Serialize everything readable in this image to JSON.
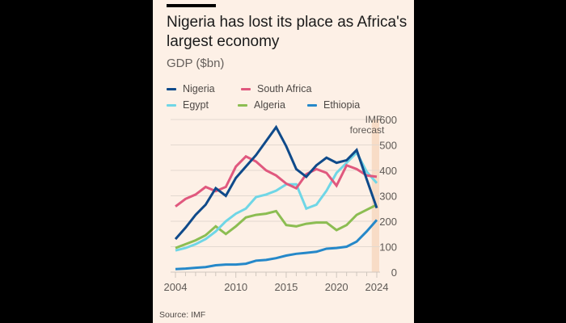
{
  "title": "Nigeria has lost its place as Africa's largest economy",
  "subtitle": "GDP ($bn)",
  "source": "Source: IMF",
  "chart_data": {
    "type": "line",
    "title": "Nigeria has lost its place as Africa's largest economy",
    "subtitle": "GDP ($bn)",
    "xlabel": "",
    "ylabel": "GDP ($bn)",
    "x": [
      2004,
      2005,
      2006,
      2007,
      2008,
      2009,
      2010,
      2011,
      2012,
      2013,
      2014,
      2015,
      2016,
      2017,
      2018,
      2019,
      2020,
      2021,
      2022,
      2023,
      2024
    ],
    "xlim": [
      2004,
      2024
    ],
    "ylim": [
      0,
      600
    ],
    "x_ticks": [
      2004,
      2010,
      2015,
      2020,
      2024
    ],
    "y_ticks": [
      0,
      100,
      200,
      300,
      400,
      500,
      600
    ],
    "y_axis_side": "right",
    "grid": true,
    "legend_position": "top-left",
    "annotation": {
      "label": "IMF forecast",
      "from": 2023.5,
      "to": 2024,
      "color": "#f8dcc6"
    },
    "series": [
      {
        "name": "Nigeria",
        "color": "#0f4a8a",
        "values": [
          130,
          175,
          225,
          265,
          330,
          300,
          370,
          415,
          460,
          515,
          570,
          495,
          405,
          375,
          420,
          450,
          430,
          440,
          480,
          365,
          252
        ]
      },
      {
        "name": "South Africa",
        "color": "#e0587e",
        "values": [
          258,
          288,
          305,
          335,
          318,
          335,
          415,
          455,
          435,
          400,
          380,
          348,
          330,
          385,
          405,
          390,
          340,
          420,
          405,
          380,
          375
        ]
      },
      {
        "name": "Egypt",
        "color": "#6fd6e6",
        "values": [
          85,
          95,
          110,
          130,
          160,
          200,
          230,
          250,
          295,
          305,
          320,
          345,
          345,
          250,
          265,
          320,
          390,
          430,
          470,
          395,
          350
        ]
      },
      {
        "name": "Algeria",
        "color": "#8cbd52",
        "values": [
          95,
          110,
          125,
          145,
          180,
          150,
          180,
          215,
          225,
          230,
          240,
          185,
          180,
          190,
          195,
          195,
          165,
          185,
          225,
          245,
          265
        ]
      },
      {
        "name": "Ethiopia",
        "color": "#2588c9",
        "values": [
          12,
          14,
          17,
          20,
          27,
          30,
          30,
          33,
          45,
          48,
          55,
          65,
          72,
          76,
          80,
          92,
          95,
          100,
          120,
          160,
          205
        ]
      }
    ]
  }
}
